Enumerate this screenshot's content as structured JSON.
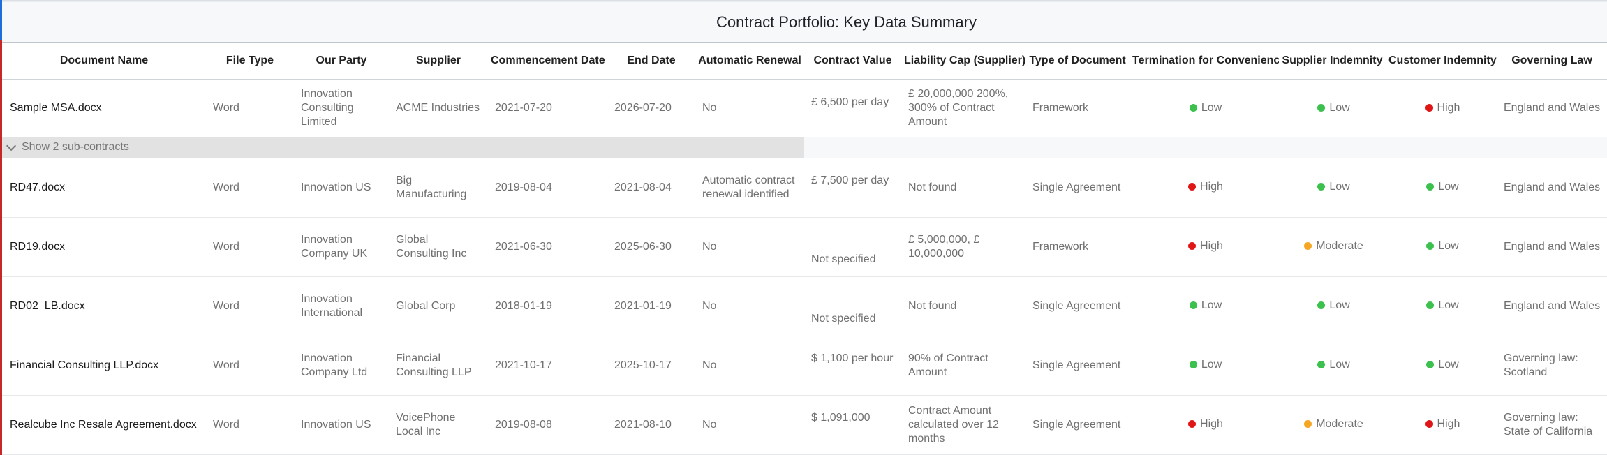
{
  "title": "Contract Portfolio: Key Data Summary",
  "columns": [
    "Document Name",
    "File Type",
    "Our Party",
    "Supplier",
    "Commencement Date",
    "End Date",
    "Automatic Renewal",
    "Contract Value",
    "Liability Cap (Supplier)",
    "Type of Document",
    "Termination for Convenience",
    "Supplier Indemnity",
    "Customer Indemnity",
    "Governing Law"
  ],
  "group_toggle_label": "Show 2 sub-contracts",
  "status_colors": {
    "Low": "#3cc14e",
    "High": "#e01616",
    "Moderate": "#f5a623"
  },
  "rows": [
    {
      "document_name": "Sample MSA.docx",
      "file_type": "Word",
      "our_party": "Innovation Consulting Limited",
      "supplier": "ACME Industries",
      "commencement_date": "2021-07-20",
      "end_date": "2026-07-20",
      "automatic_renewal": "No",
      "contract_value": "£ 6,500 per day",
      "liability_cap": "£ 20,000,000 200%, 300% of Contract Amount",
      "type_of_document": "Framework",
      "termination_for_convenience": "Low",
      "supplier_indemnity": "Low",
      "customer_indemnity": "High",
      "governing_law": "England and Wales"
    },
    {
      "document_name": "RD47.docx",
      "file_type": "Word",
      "our_party": "Innovation US",
      "supplier": "Big Manufacturing",
      "commencement_date": "2019-08-04",
      "end_date": "2021-08-04",
      "automatic_renewal": "Automatic contract renewal identified",
      "contract_value": "£ 7,500 per day",
      "liability_cap": "Not found",
      "type_of_document": "Single Agreement",
      "termination_for_convenience": "High",
      "supplier_indemnity": "Low",
      "customer_indemnity": "Low",
      "governing_law": "England and Wales"
    },
    {
      "document_name": "RD19.docx",
      "file_type": "Word",
      "our_party": "Innovation Company UK",
      "supplier": "Global Consulting Inc",
      "commencement_date": "2021-06-30",
      "end_date": "2025-06-30",
      "automatic_renewal": "No",
      "contract_value": "Not specified",
      "liability_cap": "£ 5,000,000, £ 10,000,000",
      "type_of_document": "Framework",
      "termination_for_convenience": "High",
      "supplier_indemnity": "Moderate",
      "customer_indemnity": "Low",
      "governing_law": "England and Wales"
    },
    {
      "document_name": "RD02_LB.docx",
      "file_type": "Word",
      "our_party": "Innovation International",
      "supplier": "Global Corp",
      "commencement_date": "2018-01-19",
      "end_date": "2021-01-19",
      "automatic_renewal": "No",
      "contract_value": "Not specified",
      "liability_cap": "Not found",
      "type_of_document": "Single Agreement",
      "termination_for_convenience": "Low",
      "supplier_indemnity": "Low",
      "customer_indemnity": "Low",
      "governing_law": "England and Wales"
    },
    {
      "document_name": "Financial Consulting LLP.docx",
      "file_type": "Word",
      "our_party": "Innovation Company Ltd",
      "supplier": "Financial Consulting LLP",
      "commencement_date": "2021-10-17",
      "end_date": "2025-10-17",
      "automatic_renewal": "No",
      "contract_value": "$ 1,100 per hour",
      "liability_cap": "90% of Contract Amount",
      "type_of_document": "Single Agreement",
      "termination_for_convenience": "Low",
      "supplier_indemnity": "Low",
      "customer_indemnity": "Low",
      "governing_law": "Governing law: Scotland"
    },
    {
      "document_name": "Realcube Inc Resale Agreement.docx",
      "file_type": "Word",
      "our_party": "Innovation US",
      "supplier": "VoicePhone Local Inc",
      "commencement_date": "2019-08-08",
      "end_date": "2021-08-10",
      "automatic_renewal": "No",
      "contract_value": "$ 1,091,000",
      "liability_cap": "Contract Amount calculated over 12 months",
      "type_of_document": "Single Agreement",
      "termination_for_convenience": "High",
      "supplier_indemnity": "Moderate",
      "customer_indemnity": "High",
      "governing_law": "Governing law: State of California"
    }
  ]
}
